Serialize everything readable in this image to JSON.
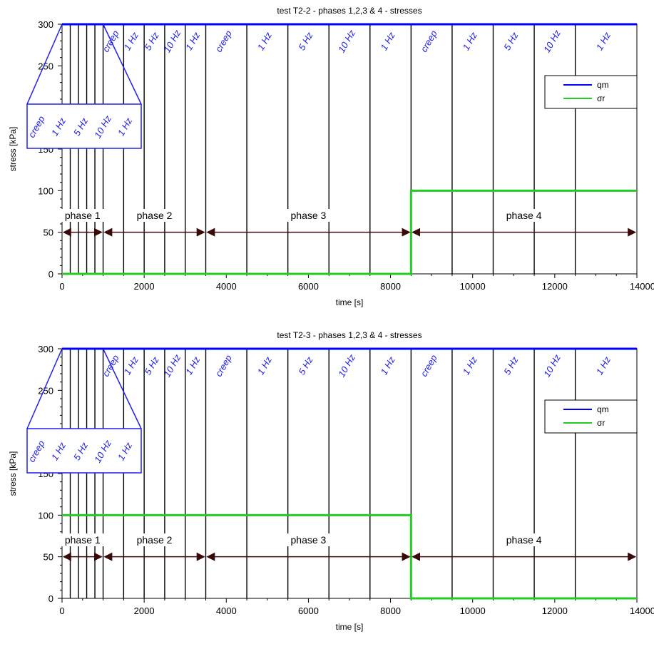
{
  "chart_data": [
    {
      "type": "line",
      "title": "test T2-2 - phases 1,2,3 & 4 - stresses",
      "xlabel": "time [s]",
      "ylabel": "stress [kPa]",
      "xlim": [
        0,
        14000
      ],
      "ylim": [
        0,
        300
      ],
      "x_ticks": [
        0,
        2000,
        4000,
        6000,
        8000,
        10000,
        12000,
        14000
      ],
      "x_tick_labels": [
        "0",
        "2000",
        "4000",
        "6000",
        "8000",
        "10000",
        "12000",
        "14000"
      ],
      "y_ticks": [
        0,
        50,
        100,
        150,
        200,
        250,
        300
      ],
      "y_tick_labels": [
        "0",
        "50",
        "100",
        "150",
        "200",
        "250",
        "300"
      ],
      "legend": {
        "position": "top-right",
        "entries": [
          "qm",
          "σr"
        ]
      },
      "series": [
        {
          "name": "qm",
          "color": "#0000ff",
          "x": [
            0,
            14000
          ],
          "y": [
            300,
            300
          ]
        },
        {
          "name": "σr",
          "color": "#22cc22",
          "x": [
            0,
            8500,
            8500,
            14000
          ],
          "y": [
            0,
            0,
            100,
            100
          ]
        }
      ],
      "boundaries": [
        200,
        400,
        600,
        800,
        1000,
        1500,
        2000,
        2500,
        3000,
        3500,
        4500,
        5500,
        6500,
        7500,
        8500,
        9500,
        10500,
        11500,
        12500
      ],
      "frequency_labels": [
        {
          "text": "creep",
          "x": 1250
        },
        {
          "text": "1 Hz",
          "x": 1750
        },
        {
          "text": "5 Hz",
          "x": 2250
        },
        {
          "text": "10 Hz",
          "x": 2750
        },
        {
          "text": "1 Hz",
          "x": 3250
        },
        {
          "text": "creep",
          "x": 4000
        },
        {
          "text": "1 Hz",
          "x": 5000
        },
        {
          "text": "5 Hz",
          "x": 6000
        },
        {
          "text": "10 Hz",
          "x": 7000
        },
        {
          "text": "1 Hz",
          "x": 8000
        },
        {
          "text": "creep",
          "x": 9000
        },
        {
          "text": "1 Hz",
          "x": 10000
        },
        {
          "text": "5 Hz",
          "x": 11000
        },
        {
          "text": "10 Hz",
          "x": 12000
        },
        {
          "text": "1 Hz",
          "x": 13250
        }
      ],
      "inset_labels": [
        "creep",
        "1 Hz",
        "5 Hz",
        "10 Hz",
        "1 Hz"
      ],
      "phases": [
        {
          "label": "phase 1",
          "from": 0,
          "to": 1000
        },
        {
          "label": "phase 2",
          "from": 1000,
          "to": 3500
        },
        {
          "label": "phase 3",
          "from": 3500,
          "to": 8500
        },
        {
          "label": "phase 4",
          "from": 8500,
          "to": 14000
        }
      ],
      "phase_arrow_y": 50,
      "phase_label_y": 66
    },
    {
      "type": "line",
      "title": "test T2-3 - phases 1,2,3 & 4 - stresses",
      "xlabel": "time [s]",
      "ylabel": "stress [kPa]",
      "xlim": [
        0,
        14000
      ],
      "ylim": [
        0,
        300
      ],
      "x_ticks": [
        0,
        2000,
        4000,
        6000,
        8000,
        10000,
        12000,
        14000
      ],
      "x_tick_labels": [
        "0",
        "2000",
        "4000",
        "6000",
        "8000",
        "10000",
        "12000",
        "14000"
      ],
      "y_ticks": [
        0,
        50,
        100,
        150,
        200,
        250,
        300
      ],
      "y_tick_labels": [
        "0",
        "50",
        "100",
        "150",
        "200",
        "250",
        "300"
      ],
      "legend": {
        "position": "top-right",
        "entries": [
          "qm",
          "σr"
        ]
      },
      "series": [
        {
          "name": "qm",
          "color": "#0000ff",
          "x": [
            0,
            14000
          ],
          "y": [
            300,
            300
          ]
        },
        {
          "name": "σr",
          "color": "#22cc22",
          "x": [
            0,
            8500,
            8500,
            14000
          ],
          "y": [
            100,
            100,
            0,
            0
          ]
        }
      ],
      "boundaries": [
        200,
        400,
        600,
        800,
        1000,
        1500,
        2000,
        2500,
        3000,
        3500,
        4500,
        5500,
        6500,
        7500,
        8500,
        9500,
        10500,
        11500,
        12500
      ],
      "frequency_labels": [
        {
          "text": "creep",
          "x": 1250
        },
        {
          "text": "1 Hz",
          "x": 1750
        },
        {
          "text": "5 Hz",
          "x": 2250
        },
        {
          "text": "10 Hz",
          "x": 2750
        },
        {
          "text": "1 Hz",
          "x": 3250
        },
        {
          "text": "creep",
          "x": 4000
        },
        {
          "text": "1 Hz",
          "x": 5000
        },
        {
          "text": "5 Hz",
          "x": 6000
        },
        {
          "text": "10 Hz",
          "x": 7000
        },
        {
          "text": "1 Hz",
          "x": 8000
        },
        {
          "text": "creep",
          "x": 9000
        },
        {
          "text": "1 Hz",
          "x": 10000
        },
        {
          "text": "5 Hz",
          "x": 11000
        },
        {
          "text": "10 Hz",
          "x": 12000
        },
        {
          "text": "1 Hz",
          "x": 13250
        }
      ],
      "inset_labels": [
        "creep",
        "1 Hz",
        "5 Hz",
        "10 Hz",
        "1 Hz"
      ],
      "phases": [
        {
          "label": "phase 1",
          "from": 0,
          "to": 1000
        },
        {
          "label": "phase 2",
          "from": 1000,
          "to": 3500
        },
        {
          "label": "phase 3",
          "from": 3500,
          "to": 8500
        },
        {
          "label": "phase 4",
          "from": 8500,
          "to": 14000
        }
      ],
      "phase_arrow_y": 50,
      "phase_label_y": 66
    }
  ]
}
